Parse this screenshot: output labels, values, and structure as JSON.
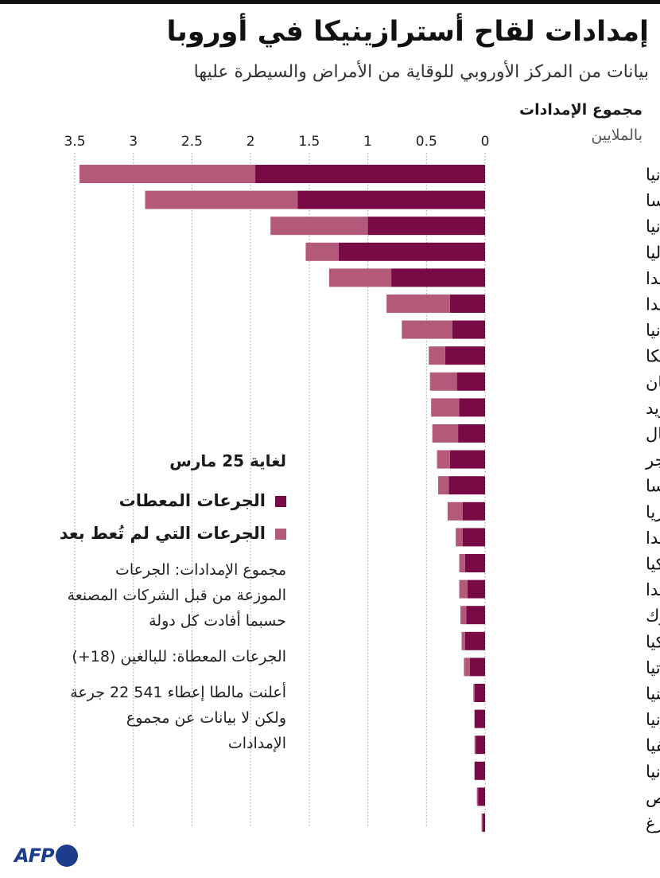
{
  "header": {
    "title": "إمدادات لقاح أسترازينيكا في أوروبا",
    "subtitle": "بيانات من المركز الأوروبي للوقاية من الأمراض والسيطرة عليها"
  },
  "axis": {
    "title": "مجموع الإمدادات",
    "unit": "بالملايين"
  },
  "legend": {
    "date": "لغاية 25 مارس",
    "administered": "الجرعات المعطات",
    "not_administered": "الجرعات التي لم تُعط بعد"
  },
  "notes": {
    "supplies": "مجموع الإمدادات: الجرعات\nالموزعة من قبل الشركات المصنعة\nحسبما أفادت كل دولة",
    "administered": "الجرعات المعطاة: للبالغين (18+)",
    "malta": "أعلنت مالطا إعطاء 541 22 جرعة\nولكن لا بيانات عن مجموع\nالإمدادات"
  },
  "source_logo": "AFP",
  "colors": {
    "administered": "#7a0a46",
    "not_administered": "#b3597a",
    "grid": "#999999"
  },
  "chart_data": {
    "type": "bar",
    "orientation": "horizontal",
    "stacked": true,
    "xlim": [
      0,
      3.5
    ],
    "x_ticks": [
      0,
      0.5,
      1,
      1.5,
      2,
      2.5,
      3,
      3.5
    ],
    "x_tick_labels": [
      "0",
      "0.5",
      "1",
      "1.5",
      "2",
      "2.5",
      "3",
      "3.5"
    ],
    "x_axis_direction": "right-to-left",
    "grid": true,
    "legend_position": "left-middle",
    "categories": [
      "ألمانيا",
      "فرنسا",
      "إسبانيا",
      "إيطاليا",
      "بولندا",
      "هولندا",
      "رومانيا",
      "بلجيكا",
      "اليونان",
      "السويد",
      "البرتغال",
      "المجر",
      "النمسا",
      "بلغاريا",
      "فنلندا",
      "تشيكيا",
      "أيرلندا",
      "الدنمارك",
      "سلوفاكيا",
      "كرواتيا",
      "سلوفينيا",
      "إستونيا",
      "لاتفيا",
      "ليتوانيا",
      "قبرص",
      "لوكسمبورغ"
    ],
    "series": [
      {
        "name": "الجرعات المعطات",
        "values": [
          1.96,
          1.6,
          1.0,
          1.25,
          0.8,
          0.3,
          0.28,
          0.34,
          0.24,
          0.22,
          0.23,
          0.3,
          0.31,
          0.19,
          0.19,
          0.17,
          0.15,
          0.16,
          0.17,
          0.13,
          0.09,
          0.09,
          0.08,
          0.09,
          0.06,
          0.02
        ]
      },
      {
        "name": "الجرعات التي لم تُعط بعد",
        "values": [
          1.5,
          1.3,
          0.83,
          0.28,
          0.53,
          0.54,
          0.43,
          0.14,
          0.23,
          0.24,
          0.22,
          0.11,
          0.09,
          0.13,
          0.06,
          0.05,
          0.07,
          0.05,
          0.03,
          0.05,
          0.01,
          0.0,
          0.01,
          0.0,
          0.01,
          0.01
        ]
      }
    ]
  }
}
